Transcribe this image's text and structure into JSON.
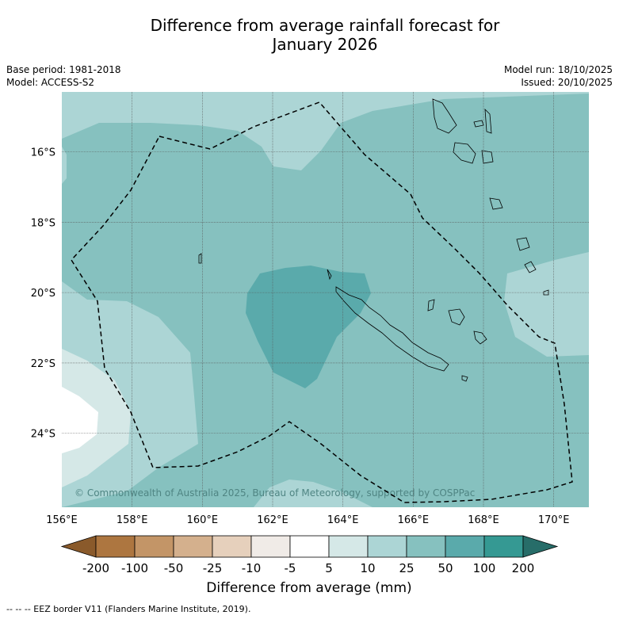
{
  "title_line1": "Difference from average rainfall forecast for",
  "title_line2": "January 2026",
  "base_period": "Base period: 1981-2018",
  "model": "Model: ACCESS-S2",
  "model_run": "Model run: 18/10/2025",
  "issued": "Issued: 20/10/2025",
  "copyright": "© Commonwealth of Australia 2025, Bureau of Meteorology, supported by COSPPac",
  "footer_note": "--  --  -- EEZ border V11 (Flanders Marine Institute, 2019).",
  "chart_data": {
    "type": "heatmap",
    "x_ticks": [
      {
        "value": 156,
        "label": "156°E"
      },
      {
        "value": 158,
        "label": "158°E"
      },
      {
        "value": 160,
        "label": "160°E"
      },
      {
        "value": 162,
        "label": "162°E"
      },
      {
        "value": 164,
        "label": "164°E"
      },
      {
        "value": 166,
        "label": "166°E"
      },
      {
        "value": 168,
        "label": "168°E"
      },
      {
        "value": 170,
        "label": "170°E"
      }
    ],
    "y_ticks": [
      {
        "value": -16,
        "label": "16°S"
      },
      {
        "value": -18,
        "label": "18°S"
      },
      {
        "value": -20,
        "label": "20°S"
      },
      {
        "value": -22,
        "label": "22°S"
      },
      {
        "value": -24,
        "label": "24°S"
      }
    ],
    "xlim": [
      156,
      171
    ],
    "ylim": [
      -26.1,
      -14.3
    ],
    "colorbar": {
      "label": "Difference from average (mm)",
      "tick_labels": [
        "-200",
        "-100",
        "-50",
        "-25",
        "-10",
        "-5",
        "5",
        "10",
        "25",
        "50",
        "100",
        "200"
      ],
      "colors": [
        "#8a5a2b",
        "#ad7640",
        "#c39567",
        "#d4b08d",
        "#e6d0bc",
        "#f0ebe7",
        "#ffffff",
        "#d5e8e7",
        "#acd5d5",
        "#86c1bf",
        "#5aaaab",
        "#359993",
        "#276d69"
      ]
    },
    "dominant_category": "25 to 50 mm",
    "max_category": "50 to 100 mm near New Caledonia"
  }
}
